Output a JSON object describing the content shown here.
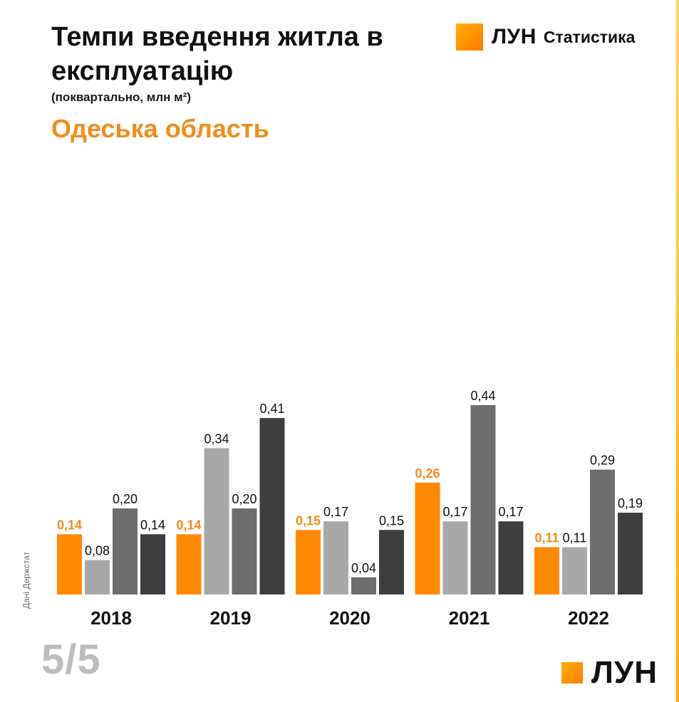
{
  "header": {
    "title": "Темпи введення житла в експлуатацію",
    "subtitle": "(поквартально, млн м²)",
    "region": "Одеська область"
  },
  "brand": {
    "name": "ЛУН",
    "section": "Статистика"
  },
  "source": "Дані Держстат",
  "page_indicator": "5/5",
  "colors": {
    "accent": "#f28c1e",
    "q1": "#ff8a00",
    "q2": "#a8a8a8",
    "q3": "#6e6e6e",
    "q4": "#3e3e3e"
  },
  "chart_data": {
    "type": "bar",
    "title": "Темпи введення житла в експлуатацію",
    "subtitle": "(поквартально, млн м²)",
    "categories": [
      "2018",
      "2019",
      "2020",
      "2021",
      "2022"
    ],
    "series": [
      {
        "values": [
          0.14,
          0.14,
          0.15,
          0.26,
          0.11
        ],
        "labels": [
          "0,14",
          "0,14",
          "0,15",
          "0,26",
          "0,11"
        ]
      },
      {
        "values": [
          0.08,
          0.34,
          0.17,
          0.17,
          0.11
        ],
        "labels": [
          "0,08",
          "0,34",
          "0,17",
          "0,17",
          "0,11"
        ]
      },
      {
        "values": [
          0.2,
          0.2,
          0.04,
          0.44,
          0.29
        ],
        "labels": [
          "0,20",
          "0,20",
          "0,04",
          "0,44",
          "0,29"
        ]
      },
      {
        "values": [
          0.14,
          0.41,
          0.15,
          0.17,
          0.19
        ],
        "labels": [
          "0,14",
          "0,41",
          "0,15",
          "0,17",
          "0,19"
        ]
      }
    ],
    "ylim": [
      0,
      0.44
    ],
    "grid": false,
    "legend": "none"
  }
}
